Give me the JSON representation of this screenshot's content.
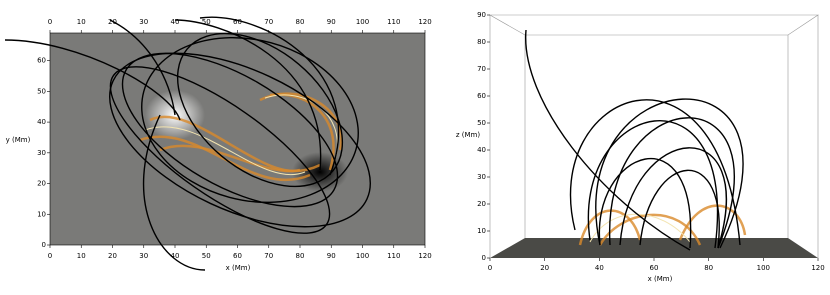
{
  "panels": [
    {
      "xlabel": "x (Mm)",
      "ylabel": "y (Mm)",
      "xlim": [
        0,
        120
      ],
      "ylim": [
        0,
        69
      ],
      "xticks": [
        0,
        10,
        20,
        30,
        40,
        50,
        60,
        70,
        80,
        90,
        100,
        110,
        120
      ],
      "yticks": [
        0,
        10,
        20,
        30,
        40,
        50,
        60
      ]
    },
    {
      "xlabel": "x (Mm)",
      "ylabel": "z (Mm)",
      "xlim": [
        0,
        120
      ],
      "ylim": [
        0,
        90
      ],
      "xticks": [
        0,
        20,
        40,
        60,
        80,
        100,
        120
      ],
      "yticks": [
        0,
        10,
        20,
        30,
        40,
        50,
        60,
        70,
        80,
        90
      ]
    }
  ]
}
